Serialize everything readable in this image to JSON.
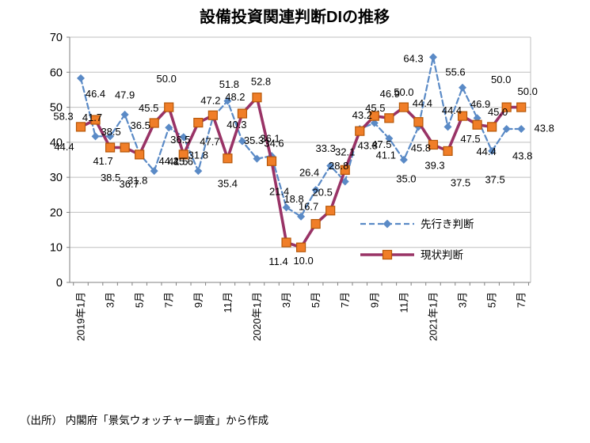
{
  "title": "設備投資関連判断DIの推移",
  "source": "（出所） 内閣府「景気ウォッチャー調査」から作成",
  "colors": {
    "outlook_line": "#5A8AC6",
    "current_line": "#993366",
    "current_marker_fill": "#F07E28",
    "current_marker_edge": "#B65708",
    "grid": "#BFBFBF",
    "axis": "#808080",
    "label_text": "#000000"
  },
  "chart_data": {
    "type": "line",
    "title": "設備投資関連判断DIの推移",
    "xlabel": "",
    "ylabel": "",
    "ylim": [
      0,
      70
    ],
    "yticks": [
      0,
      10,
      20,
      30,
      40,
      50,
      60,
      70
    ],
    "grid": true,
    "legend_position": "right-middle",
    "months_count": 31,
    "tick_labels": [
      "2019年1月",
      "3月",
      "5月",
      "7月",
      "9月",
      "11月",
      "2020年1月",
      "3月",
      "5月",
      "7月",
      "9月",
      "11月",
      "2021年1月",
      "3月",
      "5月",
      "7月"
    ],
    "series": [
      {
        "name": "先行き判断",
        "style": "dashed",
        "marker": "diamond",
        "values": [
          58.3,
          41.7,
          41.7,
          47.9,
          36.7,
          31.8,
          44.2,
          41.5,
          31.8,
          47.2,
          51.8,
          40.3,
          35.3,
          36.1,
          21.4,
          18.8,
          26.4,
          33.3,
          28.8,
          43.8,
          45.5,
          41.1,
          35.0,
          44.4,
          64.3,
          44.4,
          55.6,
          46.9,
          37.5,
          43.8,
          43.8
        ],
        "label_offsets": [
          [
            -22,
            48
          ],
          [
            -4,
            -24
          ],
          [
            -9,
            31
          ],
          [
            0,
            -25
          ],
          [
            -13,
            38
          ],
          [
            -21,
            12
          ],
          [
            0,
            42
          ],
          [
            -7,
            31
          ],
          [
            0,
            -20
          ],
          [
            -3,
            -21
          ],
          [
            2,
            -21
          ],
          [
            -7,
            -21
          ],
          [
            -4,
            -23
          ],
          [
            -2,
            -22
          ],
          [
            -9,
            -20
          ],
          [
            -9,
            -22
          ],
          [
            -8,
            -22
          ],
          [
            -6,
            -22
          ],
          [
            -8,
            -20
          ],
          [
            10,
            21
          ],
          [
            1,
            -19
          ],
          [
            -4,
            21
          ],
          [
            3,
            24
          ],
          [
            5,
            -30
          ],
          [
            -25,
            2
          ],
          [
            5,
            -21
          ],
          [
            -9,
            -20
          ],
          [
            4,
            -18
          ],
          [
            4,
            36
          ],
          [
            20,
            34
          ],
          [
            29,
            -1
          ]
        ]
      },
      {
        "name": "現状判断",
        "style": "solid",
        "marker": "square",
        "values": [
          44.4,
          46.4,
          38.5,
          38.5,
          36.5,
          45.5,
          50.0,
          36.5,
          45.6,
          47.7,
          35.4,
          48.2,
          52.8,
          34.6,
          11.4,
          10.0,
          16.7,
          20.5,
          32.1,
          43.2,
          47.5,
          46.9,
          50.0,
          45.8,
          39.3,
          37.5,
          47.5,
          45.0,
          44.4,
          50.0,
          50.0
        ],
        "label_offsets": [
          [
            -21,
            25
          ],
          [
            0,
            -33
          ],
          [
            1,
            -20
          ],
          [
            -18,
            38
          ],
          [
            1,
            -37
          ],
          [
            -7,
            -19
          ],
          [
            -3,
            -36
          ],
          [
            -4,
            -19
          ],
          [
            -19,
            49
          ],
          [
            -4,
            33
          ],
          [
            0,
            32
          ],
          [
            -9,
            -21
          ],
          [
            5,
            -20
          ],
          [
            3,
            -23
          ],
          [
            -10,
            24
          ],
          [
            3,
            17
          ],
          [
            -9,
            -22
          ],
          [
            -10,
            -23
          ],
          [
            0,
            -23
          ],
          [
            3,
            -20
          ],
          [
            9,
            36
          ],
          [
            1,
            -31
          ],
          [
            0,
            -19
          ],
          [
            3,
            33
          ],
          [
            2,
            26
          ],
          [
            16,
            40
          ],
          [
            10,
            29
          ],
          [
            26,
            -16
          ],
          [
            -7,
            31
          ],
          [
            -7,
            -35
          ],
          [
            8,
            -20
          ]
        ]
      }
    ]
  }
}
